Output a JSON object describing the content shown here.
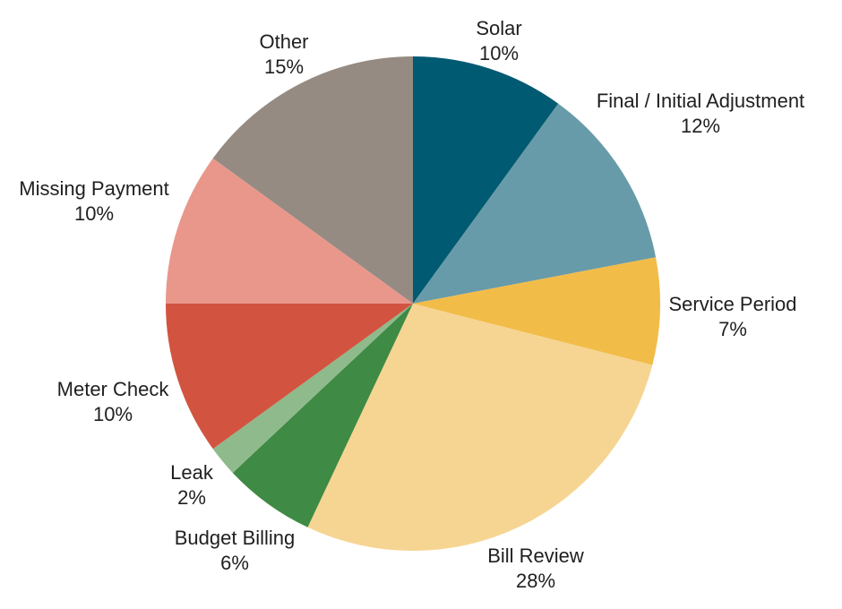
{
  "chart_data": {
    "type": "pie",
    "title": "",
    "legend": "none",
    "labels_position": "outside",
    "start_angle_deg": 0,
    "direction": "clockwise",
    "background": "#ffffff",
    "text_color": "#1f1f1f",
    "slices": [
      {
        "label": "Solar",
        "value": 10,
        "pct_label": "10%",
        "color": "#005a71"
      },
      {
        "label": "Final / Initial Adjustment",
        "value": 12,
        "pct_label": "12%",
        "color": "#689ba9"
      },
      {
        "label": "Service Period",
        "value": 7,
        "pct_label": "7%",
        "color": "#f2bc49"
      },
      {
        "label": "Bill Review",
        "value": 28,
        "pct_label": "28%",
        "color": "#f6d592"
      },
      {
        "label": "Budget Billing",
        "value": 6,
        "pct_label": "6%",
        "color": "#3f8a44"
      },
      {
        "label": "Leak",
        "value": 2,
        "pct_label": "2%",
        "color": "#8fba8b"
      },
      {
        "label": "Meter Check",
        "value": 10,
        "pct_label": "10%",
        "color": "#d25440"
      },
      {
        "label": "Missing Payment",
        "value": 10,
        "pct_label": "10%",
        "color": "#e9978b"
      },
      {
        "label": "Other",
        "value": 15,
        "pct_label": "15%",
        "color": "#958b82"
      }
    ]
  }
}
